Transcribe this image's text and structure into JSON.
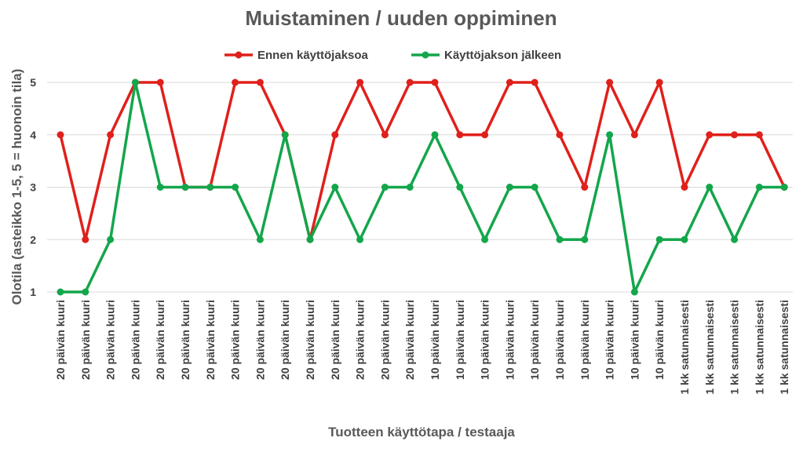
{
  "chart_data": {
    "type": "line",
    "title": "Muistaminen / uuden oppiminen",
    "xlabel": "Tuotteen käyttötapa / testaaja",
    "ylabel": "Olotila (asteikko 1-5, 5 = huonoin tila)",
    "ylim": [
      1,
      5
    ],
    "yticks": [
      "1",
      "2",
      "3",
      "4",
      "5"
    ],
    "grid": true,
    "legend": "top-center",
    "categories": [
      "20 päivän kuuri",
      "20 päivän kuuri",
      "20 päivän kuuri",
      "20 päivän kuuri",
      "20 päivän kuuri",
      "20 päivän kuuri",
      "20 päivän kuuri",
      "20 päivän kuuri",
      "20 päivän kuuri",
      "20 päivän kuuri",
      "20 päivän kuuri",
      "20 päivän kuuri",
      "20 päivän kuuri",
      "20 päivän kuuri",
      "20 päivän kuuri",
      "10 päivän kuuri",
      "10 päivän kuuri",
      "10 päivän kuuri",
      "10 päivän kuuri",
      "10 päivän kuuri",
      "10 päivän kuuri",
      "10 päivän kuuri",
      "10 päivän kuuri",
      "10 päivän kuuri",
      "10 päivän kuuri",
      "1 kk satunnaisesti",
      "1 kk satunnaisesti",
      "1 kk satunnaisesti",
      "1 kk satunnaisesti",
      "1 kk satunnaisesti"
    ],
    "series": [
      {
        "name": "Ennen käyttöjaksoa",
        "color": "#e0201b",
        "values": [
          4,
          2,
          4,
          5,
          5,
          3,
          3,
          5,
          5,
          4,
          2,
          4,
          5,
          4,
          5,
          5,
          4,
          4,
          5,
          5,
          4,
          3,
          5,
          4,
          5,
          3,
          4,
          4,
          4,
          3
        ]
      },
      {
        "name": "Käyttöjakson jälkeen",
        "color": "#13a64b",
        "values": [
          1,
          1,
          2,
          5,
          3,
          3,
          3,
          3,
          2,
          4,
          2,
          3,
          2,
          3,
          3,
          4,
          3,
          2,
          3,
          3,
          2,
          2,
          4,
          1,
          2,
          2,
          3,
          2,
          3,
          3
        ]
      }
    ]
  }
}
